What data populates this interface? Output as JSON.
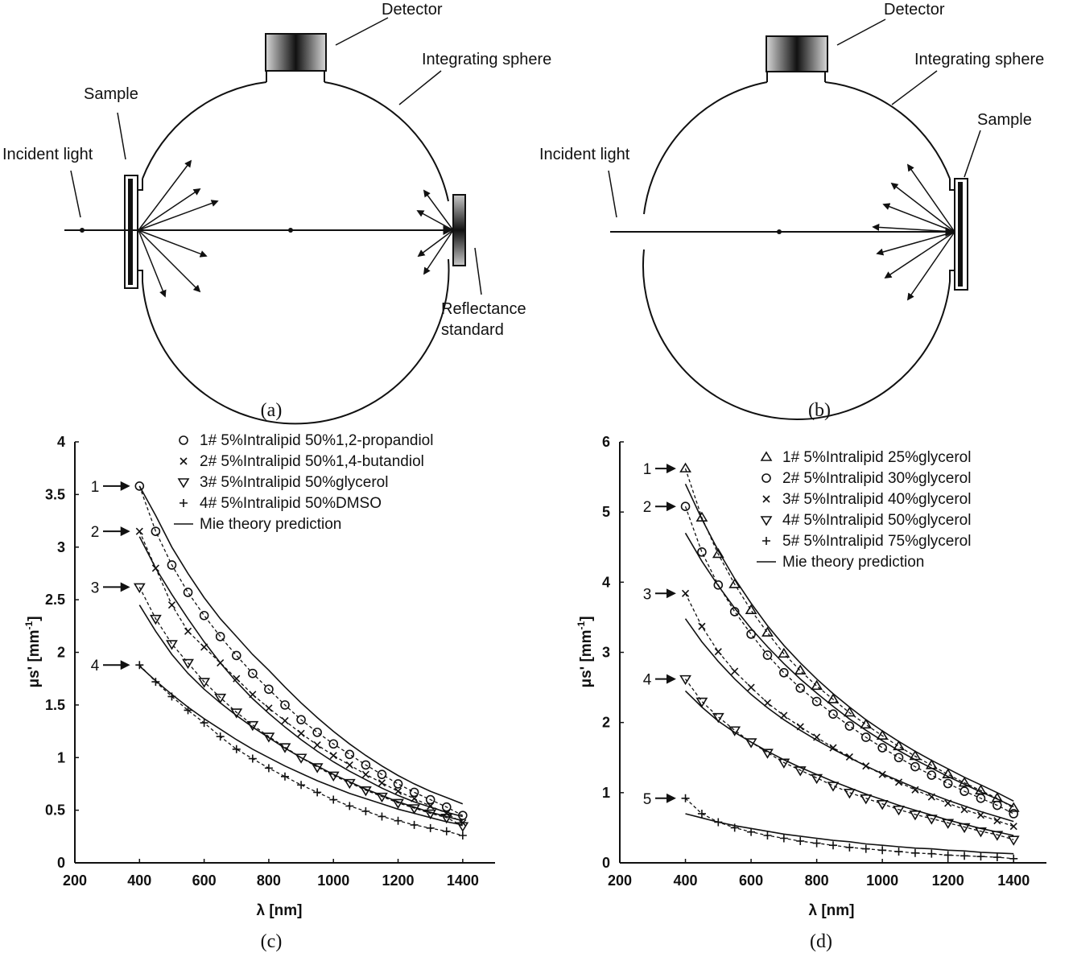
{
  "diagram_a": {
    "caption": "(a)",
    "labels": {
      "detector": "Detector",
      "integrating_sphere": "Integrating sphere",
      "sample": "Sample",
      "incident_light": "Incident light",
      "reflectance_standard_1": "Reflectance",
      "reflectance_standard_2": "standard"
    }
  },
  "diagram_b": {
    "caption": "(b)",
    "labels": {
      "detector": "Detector",
      "integrating_sphere": "Integrating sphere",
      "sample": "Sample",
      "incident_light": "Incident light"
    }
  },
  "colors": {
    "ink": "#111111",
    "background": "#ffffff"
  },
  "chart_data": [
    {
      "id": "c",
      "type": "scatter",
      "caption": "(c)",
      "xlabel": "λ [nm]",
      "ylabel": "μs' [mm",
      "ylabel_sup": "-1",
      "ylabel_end": "]",
      "xlim": [
        200,
        1500
      ],
      "ylim": [
        0,
        4
      ],
      "xticks": [
        "200",
        "400",
        "600",
        "800",
        "1000",
        "1200",
        "1400"
      ],
      "yticks": [
        "0",
        "0.5",
        "1",
        "1.5",
        "2",
        "2.5",
        "3",
        "3.5",
        "4"
      ],
      "x": [
        400,
        450,
        500,
        550,
        600,
        650,
        700,
        750,
        800,
        850,
        900,
        950,
        1000,
        1050,
        1100,
        1150,
        1200,
        1250,
        1300,
        1350,
        1400
      ],
      "arrow_labels": [
        "1",
        "2",
        "3",
        "4"
      ],
      "series": [
        {
          "name": "1# 5%Intralipid 50%1,2-propandiol",
          "marker": "circle",
          "start": 3.58,
          "values": [
            3.58,
            3.15,
            2.83,
            2.57,
            2.35,
            2.15,
            1.97,
            1.8,
            1.65,
            1.5,
            1.36,
            1.24,
            1.13,
            1.03,
            0.93,
            0.84,
            0.75,
            0.67,
            0.6,
            0.53,
            0.45
          ],
          "mie": [
            3.58,
            3.3,
            3.0,
            2.75,
            2.52,
            2.32,
            2.15,
            1.98,
            1.83,
            1.67,
            1.52,
            1.38,
            1.25,
            1.13,
            1.02,
            0.92,
            0.83,
            0.75,
            0.68,
            0.62,
            0.56
          ]
        },
        {
          "name": "2# 5%Intralipid 50%1,4-butandiol",
          "marker": "x",
          "start": 3.15,
          "values": [
            3.15,
            2.8,
            2.45,
            2.2,
            2.05,
            1.9,
            1.75,
            1.6,
            1.47,
            1.35,
            1.23,
            1.12,
            1.02,
            0.93,
            0.84,
            0.76,
            0.68,
            0.61,
            0.54,
            0.47,
            0.38
          ],
          "mie": [
            3.1,
            2.8,
            2.55,
            2.32,
            2.1,
            1.9,
            1.72,
            1.56,
            1.42,
            1.29,
            1.17,
            1.06,
            0.96,
            0.87,
            0.79,
            0.71,
            0.64,
            0.58,
            0.53,
            0.48,
            0.44
          ]
        },
        {
          "name": "3# 5%Intralipid 50%glycerol",
          "marker": "triangle-down",
          "start": 2.62,
          "values": [
            2.62,
            2.32,
            2.08,
            1.9,
            1.72,
            1.57,
            1.43,
            1.31,
            1.2,
            1.1,
            1.0,
            0.91,
            0.83,
            0.76,
            0.69,
            0.63,
            0.57,
            0.52,
            0.47,
            0.43,
            0.35
          ],
          "mie": [
            2.45,
            2.2,
            1.98,
            1.8,
            1.65,
            1.52,
            1.4,
            1.29,
            1.19,
            1.09,
            1.0,
            0.92,
            0.84,
            0.77,
            0.7,
            0.64,
            0.58,
            0.53,
            0.48,
            0.44,
            0.4
          ]
        },
        {
          "name": "4# 5%Intralipid 50%DMSO",
          "marker": "plus",
          "start": 1.88,
          "values": [
            1.88,
            1.72,
            1.58,
            1.45,
            1.33,
            1.2,
            1.08,
            0.99,
            0.9,
            0.82,
            0.74,
            0.67,
            0.6,
            0.54,
            0.49,
            0.44,
            0.4,
            0.36,
            0.33,
            0.3,
            0.26
          ],
          "mie": [
            1.87,
            1.73,
            1.6,
            1.48,
            1.37,
            1.27,
            1.17,
            1.08,
            1.0,
            0.92,
            0.85,
            0.78,
            0.72,
            0.66,
            0.61,
            0.56,
            0.51,
            0.47,
            0.43,
            0.39,
            0.36
          ]
        }
      ],
      "legend": [
        {
          "marker": "circle",
          "label": "1# 5%Intralipid 50%1,2-propandiol"
        },
        {
          "marker": "x",
          "label": "2# 5%Intralipid 50%1,4-butandiol"
        },
        {
          "marker": "triangle-down",
          "label": "3# 5%Intralipid 50%glycerol"
        },
        {
          "marker": "plus",
          "label": "4# 5%Intralipid 50%DMSO"
        },
        {
          "marker": "line",
          "label": "Mie theory prediction"
        }
      ]
    },
    {
      "id": "d",
      "type": "scatter",
      "caption": "(d)",
      "xlabel": "λ [nm]",
      "ylabel": "μs' [mm",
      "ylabel_sup": "-1",
      "ylabel_end": "]",
      "xlim": [
        200,
        1500
      ],
      "ylim": [
        0,
        6
      ],
      "xticks": [
        "200",
        "400",
        "600",
        "800",
        "1000",
        "1200",
        "1400"
      ],
      "yticks": [
        "0",
        "1",
        "2",
        "3",
        "4",
        "5",
        "6"
      ],
      "x": [
        400,
        450,
        500,
        550,
        600,
        650,
        700,
        750,
        800,
        850,
        900,
        950,
        1000,
        1050,
        1100,
        1150,
        1200,
        1250,
        1300,
        1350,
        1400
      ],
      "arrow_labels": [
        "1",
        "2",
        "3",
        "4",
        "5"
      ],
      "series": [
        {
          "name": "1# 5%Intralipid 25%glycerol",
          "marker": "triangle-up",
          "start": 5.62,
          "values": [
            5.62,
            4.92,
            4.4,
            3.97,
            3.6,
            3.28,
            2.98,
            2.74,
            2.52,
            2.33,
            2.14,
            1.97,
            1.81,
            1.66,
            1.52,
            1.39,
            1.26,
            1.14,
            1.03,
            0.92,
            0.78
          ],
          "mie": [
            5.4,
            4.9,
            4.45,
            4.05,
            3.7,
            3.38,
            3.1,
            2.85,
            2.62,
            2.41,
            2.22,
            2.04,
            1.88,
            1.73,
            1.59,
            1.46,
            1.34,
            1.22,
            1.11,
            1.0,
            0.88
          ]
        },
        {
          "name": "2# 5%Intralipid 30%glycerol",
          "marker": "circle",
          "start": 5.08,
          "values": [
            5.08,
            4.43,
            3.96,
            3.58,
            3.26,
            2.96,
            2.71,
            2.49,
            2.3,
            2.12,
            1.95,
            1.79,
            1.64,
            1.5,
            1.37,
            1.25,
            1.13,
            1.02,
            0.92,
            0.82,
            0.7
          ],
          "mie": [
            4.7,
            4.3,
            3.95,
            3.63,
            3.34,
            3.08,
            2.84,
            2.62,
            2.42,
            2.23,
            2.05,
            1.89,
            1.74,
            1.6,
            1.47,
            1.35,
            1.23,
            1.12,
            1.01,
            0.91,
            0.8
          ]
        },
        {
          "name": "3# 5%Intralipid 40%glycerol",
          "marker": "x",
          "start": 3.84,
          "values": [
            3.84,
            3.37,
            3.01,
            2.73,
            2.5,
            2.28,
            2.1,
            1.94,
            1.79,
            1.64,
            1.51,
            1.38,
            1.26,
            1.15,
            1.04,
            0.94,
            0.85,
            0.76,
            0.68,
            0.6,
            0.52
          ],
          "mie": [
            3.48,
            3.15,
            2.87,
            2.62,
            2.4,
            2.21,
            2.04,
            1.89,
            1.75,
            1.62,
            1.5,
            1.38,
            1.27,
            1.17,
            1.07,
            0.98,
            0.89,
            0.81,
            0.73,
            0.66,
            0.59
          ]
        },
        {
          "name": "4# 5%Intralipid 50%glycerol",
          "marker": "triangle-down",
          "start": 2.62,
          "values": [
            2.62,
            2.3,
            2.08,
            1.89,
            1.72,
            1.57,
            1.43,
            1.32,
            1.21,
            1.1,
            1.0,
            0.92,
            0.84,
            0.76,
            0.69,
            0.63,
            0.57,
            0.51,
            0.45,
            0.4,
            0.33
          ],
          "mie": [
            2.45,
            2.22,
            2.02,
            1.86,
            1.72,
            1.59,
            1.47,
            1.36,
            1.26,
            1.16,
            1.07,
            0.98,
            0.9,
            0.82,
            0.75,
            0.68,
            0.61,
            0.55,
            0.49,
            0.44,
            0.39
          ]
        },
        {
          "name": "5# 5%Intralipid 75%glycerol",
          "marker": "plus",
          "start": 0.92,
          "values": [
            0.92,
            0.7,
            0.58,
            0.5,
            0.44,
            0.39,
            0.35,
            0.31,
            0.28,
            0.25,
            0.22,
            0.2,
            0.18,
            0.16,
            0.14,
            0.13,
            0.11,
            0.1,
            0.09,
            0.08,
            0.06
          ],
          "mie": [
            0.7,
            0.64,
            0.58,
            0.53,
            0.49,
            0.45,
            0.41,
            0.38,
            0.35,
            0.32,
            0.3,
            0.27,
            0.25,
            0.23,
            0.21,
            0.2,
            0.18,
            0.17,
            0.15,
            0.14,
            0.13
          ]
        }
      ],
      "legend": [
        {
          "marker": "triangle-up",
          "label": "1# 5%Intralipid 25%glycerol"
        },
        {
          "marker": "circle",
          "label": "2# 5%Intralipid 30%glycerol"
        },
        {
          "marker": "x",
          "label": "3# 5%Intralipid 40%glycerol"
        },
        {
          "marker": "triangle-down",
          "label": "4# 5%Intralipid 50%glycerol"
        },
        {
          "marker": "plus",
          "label": "5# 5%Intralipid 75%glycerol"
        },
        {
          "marker": "line",
          "label": "Mie theory prediction"
        }
      ]
    }
  ]
}
